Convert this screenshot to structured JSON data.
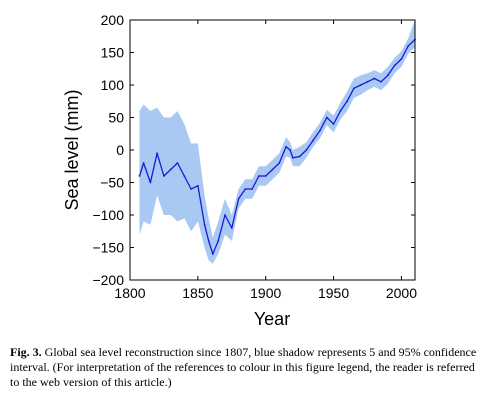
{
  "chart_data": {
    "type": "line",
    "xlabel": "Year",
    "ylabel": "Sea level (mm)",
    "xlim": [
      1800,
      2010
    ],
    "ylim": [
      -200,
      200
    ],
    "x_ticks": [
      1800,
      1850,
      1900,
      1950,
      2000
    ],
    "y_ticks": [
      -200,
      -150,
      -100,
      -50,
      0,
      50,
      100,
      150,
      200
    ],
    "grid": false,
    "line_color": "#1a1adb",
    "band_color": "#a9c8f2",
    "series": [
      {
        "x": [
          1807,
          1810,
          1815,
          1820,
          1825,
          1830,
          1835,
          1840,
          1845,
          1850,
          1855,
          1858,
          1861,
          1865,
          1870,
          1875,
          1880,
          1885,
          1890,
          1895,
          1900,
          1905,
          1910,
          1915,
          1918,
          1920,
          1925,
          1930,
          1935,
          1940,
          1945,
          1950,
          1955,
          1960,
          1965,
          1970,
          1975,
          1980,
          1985,
          1990,
          1995,
          2000,
          2005,
          2010
        ],
        "y": [
          -40,
          -20,
          -50,
          -5,
          -40,
          -30,
          -20,
          -40,
          -60,
          -55,
          -115,
          -140,
          -160,
          -140,
          -100,
          -120,
          -75,
          -60,
          -60,
          -40,
          -40,
          -30,
          -20,
          5,
          0,
          -12,
          -10,
          0,
          15,
          30,
          50,
          40,
          60,
          75,
          95,
          100,
          105,
          110,
          105,
          115,
          130,
          140,
          160,
          170
        ],
        "lower": [
          -130,
          -110,
          -115,
          -70,
          -100,
          -100,
          -110,
          -105,
          -125,
          -110,
          -150,
          -170,
          -175,
          -160,
          -130,
          -140,
          -90,
          -75,
          -75,
          -55,
          -55,
          -45,
          -35,
          -10,
          -12,
          -25,
          -25,
          -12,
          5,
          18,
          38,
          27,
          47,
          60,
          80,
          85,
          92,
          97,
          92,
          102,
          118,
          128,
          148,
          158
        ],
        "upper": [
          60,
          70,
          60,
          65,
          50,
          50,
          60,
          40,
          10,
          10,
          -70,
          -105,
          -135,
          -110,
          -75,
          -100,
          -60,
          -45,
          -45,
          -25,
          -25,
          -15,
          -5,
          20,
          12,
          0,
          5,
          12,
          28,
          42,
          62,
          53,
          73,
          90,
          110,
          115,
          118,
          123,
          118,
          128,
          142,
          152,
          172,
          200
        ]
      }
    ]
  },
  "caption": {
    "label": "Fig. 3.",
    "text": " Global sea level reconstruction since 1807, blue shadow represents 5 and 95% confidence interval. (For interpretation of the references to colour in this figure legend, the reader is referred to the web version of this article.)"
  }
}
